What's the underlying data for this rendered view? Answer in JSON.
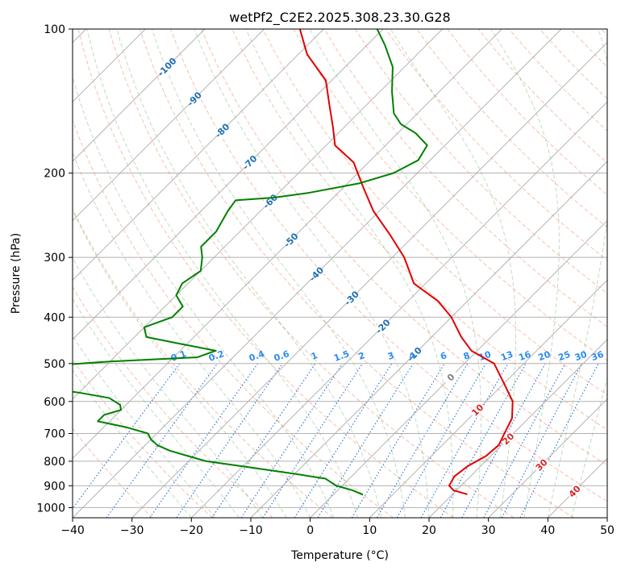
{
  "chart_data": {
    "type": "line",
    "title": "wetPf2_C2E2.2025.308.23.30.G28",
    "xlabel": "Temperature (°C)",
    "ylabel": "Pressure (hPa)",
    "xlim": [
      -40,
      50
    ],
    "ylim": [
      1050,
      100
    ],
    "y_scale": "log",
    "skew": 45,
    "grid": true,
    "x_ticks": [
      -40,
      -30,
      -20,
      -10,
      0,
      10,
      20,
      30,
      40,
      50
    ],
    "y_ticks": [
      100,
      200,
      300,
      400,
      500,
      600,
      700,
      800,
      900,
      1000
    ],
    "isotherm_labels": [
      {
        "text": "-100",
        "p": 120
      },
      {
        "text": "-90",
        "p": 140
      },
      {
        "text": "-80",
        "p": 163
      },
      {
        "text": "-70",
        "p": 190
      },
      {
        "text": "-60",
        "p": 229
      },
      {
        "text": "-50",
        "p": 276
      },
      {
        "text": "-40",
        "p": 325
      },
      {
        "text": "-30",
        "p": 365
      },
      {
        "text": "-20",
        "p": 418
      },
      {
        "text": "-10",
        "p": 478
      },
      {
        "text": "0",
        "p": 534
      },
      {
        "text": "10",
        "p": 625
      },
      {
        "text": "20",
        "p": 718
      },
      {
        "text": "30",
        "p": 814
      },
      {
        "text": "40",
        "p": 924
      }
    ],
    "mixing_ratio_labels": [
      "0.1",
      "0.2",
      "0.4",
      "0.6",
      "1",
      "1.5",
      "2",
      "3",
      "4",
      "6",
      "8",
      "10",
      "13",
      "16",
      "20",
      "25",
      "30",
      "36"
    ],
    "series": [
      {
        "color": "#e00000",
        "points": [
          [
            938,
            22.5
          ],
          [
            920,
            19.5
          ],
          [
            900,
            18.0
          ],
          [
            860,
            17.3
          ],
          [
            820,
            17.8
          ],
          [
            780,
            19.2
          ],
          [
            740,
            19.5
          ],
          [
            700,
            18.5
          ],
          [
            650,
            17.2
          ],
          [
            600,
            14.5
          ],
          [
            550,
            10.0
          ],
          [
            500,
            5.0
          ],
          [
            470,
            -1.0
          ],
          [
            440,
            -5.0
          ],
          [
            400,
            -10.0
          ],
          [
            370,
            -15.0
          ],
          [
            340,
            -22.0
          ],
          [
            300,
            -28.0
          ],
          [
            270,
            -34.0
          ],
          [
            240,
            -41.0
          ],
          [
            215,
            -46.5
          ],
          [
            190,
            -52.5
          ],
          [
            175,
            -58.5
          ],
          [
            160,
            -62.0
          ],
          [
            145,
            -66.0
          ],
          [
            128,
            -71.0
          ],
          [
            113,
            -78.5
          ],
          [
            100,
            -84.0
          ]
        ]
      },
      {
        "color": "#008000",
        "points": [
          [
            940,
            5.0
          ],
          [
            920,
            2.5
          ],
          [
            900,
            -1.0
          ],
          [
            870,
            -4.0
          ],
          [
            850,
            -10.0
          ],
          [
            820,
            -20.0
          ],
          [
            800,
            -27.0
          ],
          [
            780,
            -31.0
          ],
          [
            760,
            -35.0
          ],
          [
            740,
            -38.0
          ],
          [
            720,
            -40.0
          ],
          [
            700,
            -41.5
          ],
          [
            680,
            -46.0
          ],
          [
            660,
            -52.0
          ],
          [
            640,
            -52.0
          ],
          [
            625,
            -50.0
          ],
          [
            610,
            -51.0
          ],
          [
            590,
            -54.0
          ],
          [
            575,
            -60.0
          ],
          [
            555,
            -70.0
          ],
          [
            520,
            -72.0
          ],
          [
            505,
            -69.0
          ],
          [
            495,
            -60.0
          ],
          [
            485,
            -46.0
          ],
          [
            470,
            -44.0
          ],
          [
            455,
            -51.0
          ],
          [
            440,
            -58.0
          ],
          [
            420,
            -60.0
          ],
          [
            400,
            -57.0
          ],
          [
            380,
            -57.0
          ],
          [
            360,
            -60.0
          ],
          [
            340,
            -61.0
          ],
          [
            320,
            -60.0
          ],
          [
            300,
            -62.0
          ],
          [
            285,
            -64.0
          ],
          [
            265,
            -64.0
          ],
          [
            240,
            -65.5
          ],
          [
            228,
            -66.0
          ],
          [
            225,
            -60.0
          ],
          [
            220,
            -55.0
          ],
          [
            210,
            -48.0
          ],
          [
            200,
            -44.0
          ],
          [
            188,
            -42.0
          ],
          [
            175,
            -43.0
          ],
          [
            165,
            -47.0
          ],
          [
            158,
            -51.0
          ],
          [
            150,
            -54.0
          ],
          [
            135,
            -58.0
          ],
          [
            120,
            -62.0
          ],
          [
            108,
            -67.0
          ],
          [
            100,
            -71.0
          ]
        ]
      }
    ]
  }
}
